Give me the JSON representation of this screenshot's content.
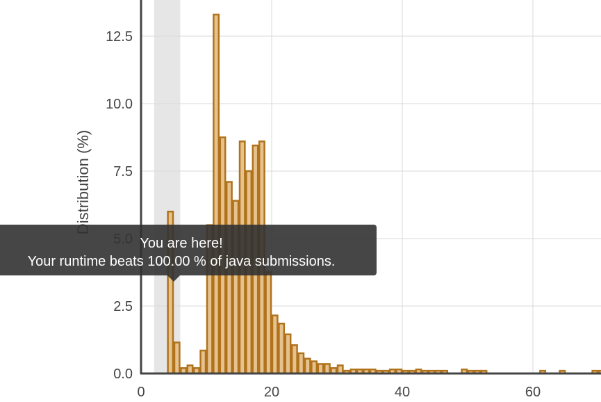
{
  "chart_data": {
    "type": "bar",
    "subtype": "histogram",
    "ylabel": "Distribution (%)",
    "xlabel": "",
    "xlim": [
      0,
      70.5
    ],
    "ylim": [
      0,
      14
    ],
    "x_ticks": [
      0,
      20,
      40,
      60
    ],
    "y_ticks": [
      "0.0",
      "2.5",
      "5.0",
      "7.5",
      "10.0",
      "12.5"
    ],
    "grid": true,
    "bin_width": 1,
    "highlight_band": [
      2,
      6
    ],
    "series": [
      {
        "bins": [
          [
            4,
            6.0
          ],
          [
            5,
            1.15
          ],
          [
            6,
            0.2
          ],
          [
            7,
            0.3
          ],
          [
            8,
            0.2
          ],
          [
            9,
            0.85
          ],
          [
            10,
            5.5
          ],
          [
            11,
            13.3
          ],
          [
            12,
            8.75
          ],
          [
            13,
            7.1
          ],
          [
            14,
            6.4
          ],
          [
            15,
            8.6
          ],
          [
            16,
            7.5
          ],
          [
            17,
            8.45
          ],
          [
            18,
            8.6
          ],
          [
            19,
            3.75
          ],
          [
            20,
            2.15
          ],
          [
            21,
            1.85
          ],
          [
            22,
            1.45
          ],
          [
            23,
            1.05
          ],
          [
            24,
            0.75
          ],
          [
            25,
            0.55
          ],
          [
            26,
            0.45
          ],
          [
            27,
            0.35
          ],
          [
            28,
            0.35
          ],
          [
            29,
            0.2
          ],
          [
            30,
            0.3
          ],
          [
            31,
            0.1
          ],
          [
            32,
            0.15
          ],
          [
            33,
            0.15
          ],
          [
            34,
            0.15
          ],
          [
            35,
            0.15
          ],
          [
            36,
            0.1
          ],
          [
            37,
            0.1
          ],
          [
            38,
            0.15
          ],
          [
            39,
            0.15
          ],
          [
            40,
            0.1
          ],
          [
            41,
            0.1
          ],
          [
            42,
            0.15
          ],
          [
            43,
            0.1
          ],
          [
            44,
            0.1
          ],
          [
            45,
            0.1
          ],
          [
            46,
            0.1
          ],
          [
            49,
            0.15
          ],
          [
            50,
            0.1
          ],
          [
            51,
            0.1
          ],
          [
            52,
            0.1
          ],
          [
            61,
            0.1
          ],
          [
            64,
            0.1
          ],
          [
            69,
            0.1
          ],
          [
            70,
            0.1
          ]
        ]
      }
    ]
  },
  "tooltip": {
    "line1": "You are here!",
    "line2": "Your runtime beats 100.00 % of java submissions."
  },
  "colors": {
    "bar_fill": "#e6c28f",
    "bar_stroke": "#b0731c",
    "highlight_band": "#e6e6e6",
    "grid": "#d9d9d9",
    "axis": "#444444"
  }
}
